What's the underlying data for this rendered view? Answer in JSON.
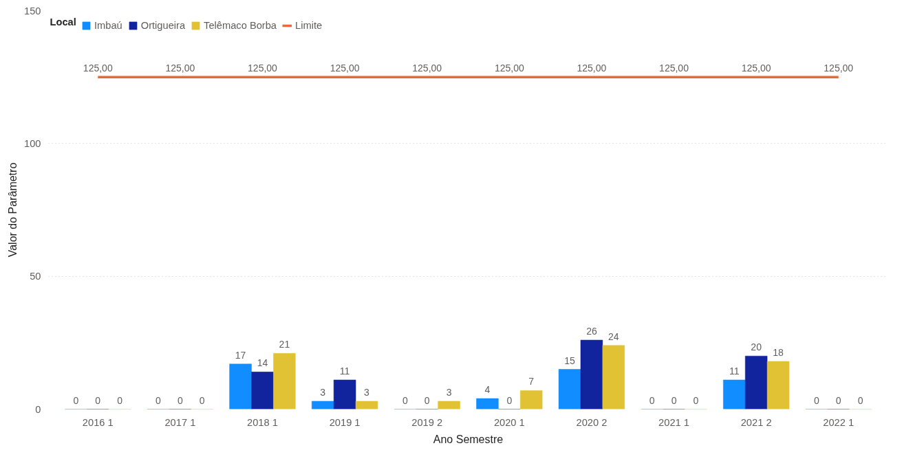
{
  "chart_data": {
    "type": "bar",
    "xlabel": "Ano Semestre",
    "ylabel": "Valor do Parâmetro",
    "legend_title": "Local",
    "categories": [
      "2016 1",
      "2017 1",
      "2018 1",
      "2019 1",
      "2019 2",
      "2020 1",
      "2020 2",
      "2021 1",
      "2021 2",
      "2022 1"
    ],
    "series": [
      {
        "name": "Imbaú",
        "color": "#118dff",
        "values": [
          0,
          0,
          17,
          3,
          0,
          4,
          15,
          0,
          11,
          0
        ]
      },
      {
        "name": "Ortigueira",
        "color": "#12239e",
        "values": [
          0,
          0,
          14,
          11,
          0,
          0,
          26,
          0,
          20,
          0
        ]
      },
      {
        "name": "Telêmaco Borba",
        "color": "#e0c234",
        "values": [
          0,
          0,
          21,
          3,
          3,
          7,
          24,
          0,
          18,
          0
        ]
      },
      {
        "name": "Limite",
        "color": "#e66c37",
        "type": "line",
        "values": [
          125,
          125,
          125,
          125,
          125,
          125,
          125,
          125,
          125,
          125
        ],
        "value_labels": [
          "125,00",
          "125,00",
          "125,00",
          "125,00",
          "125,00",
          "125,00",
          "125,00",
          "125,00",
          "125,00",
          "125,00"
        ]
      }
    ],
    "ylim": [
      0,
      150
    ],
    "yticks": [
      0,
      50,
      100,
      150
    ],
    "grid": "y",
    "legend": "top left",
    "data_labels": true
  }
}
